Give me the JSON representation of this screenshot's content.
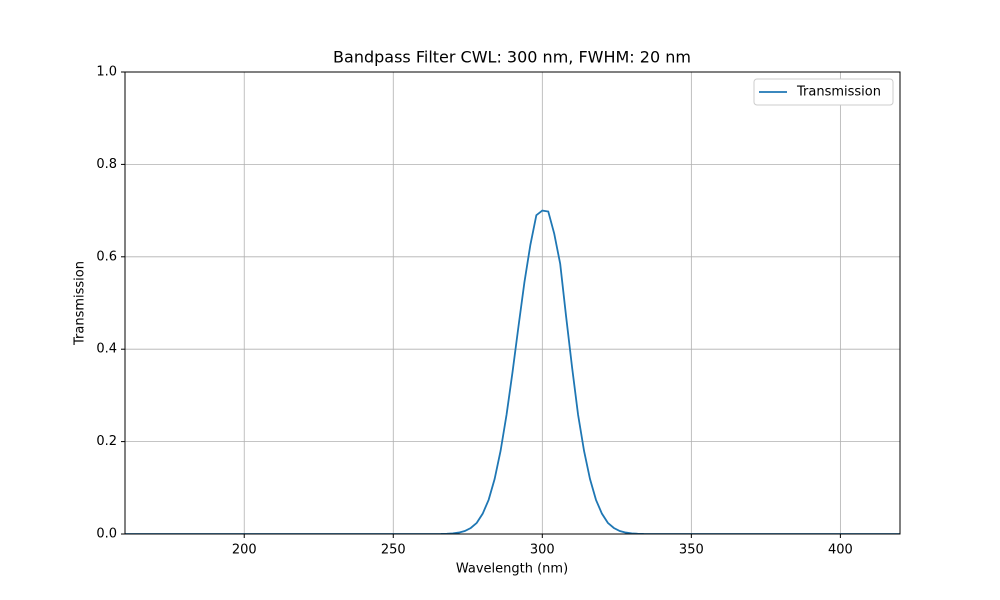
{
  "chart_data": {
    "type": "line",
    "title": "Bandpass Filter CWL: 300 nm, FWHM: 20 nm",
    "x_label": "Wavelength (nm)",
    "y_label": "Transmission",
    "x": [
      160,
      200,
      250,
      260,
      266,
      268,
      270,
      272,
      274,
      276,
      278,
      280,
      282,
      284,
      286,
      288,
      290,
      292,
      294,
      296,
      298,
      300,
      302,
      304,
      306,
      308,
      310,
      312,
      314,
      316,
      318,
      320,
      322,
      324,
      326,
      328,
      330,
      332,
      334,
      340,
      350,
      400,
      420
    ],
    "series": [
      {
        "name": "Transmission",
        "color": "#1f77b4",
        "values": [
          0,
          0,
          0,
          0,
          0.0002,
          0.0006,
          0.0014,
          0.0031,
          0.0064,
          0.013,
          0.024,
          0.044,
          0.074,
          0.119,
          0.18,
          0.258,
          0.35,
          0.449,
          0.545,
          0.626,
          0.69,
          0.7,
          0.698,
          0.65,
          0.585,
          0.47,
          0.36,
          0.258,
          0.18,
          0.119,
          0.074,
          0.044,
          0.024,
          0.013,
          0.0064,
          0.0031,
          0.0014,
          0.0006,
          0.0002,
          0,
          0,
          0,
          0
        ]
      }
    ],
    "xlim": [
      160,
      420
    ],
    "ylim": [
      0,
      1
    ],
    "xticks": [
      200,
      250,
      300,
      350,
      400
    ],
    "yticks": [
      {
        "value": 0,
        "label": "0.0"
      },
      {
        "value": 0.2,
        "label": "0.2"
      },
      {
        "value": 0.4,
        "label": "0.4"
      },
      {
        "value": 0.6,
        "label": "0.6"
      },
      {
        "value": 0.8,
        "label": "0.8"
      },
      {
        "value": 1,
        "label": "1.0"
      }
    ],
    "grid": true,
    "legend": "upper right"
  }
}
